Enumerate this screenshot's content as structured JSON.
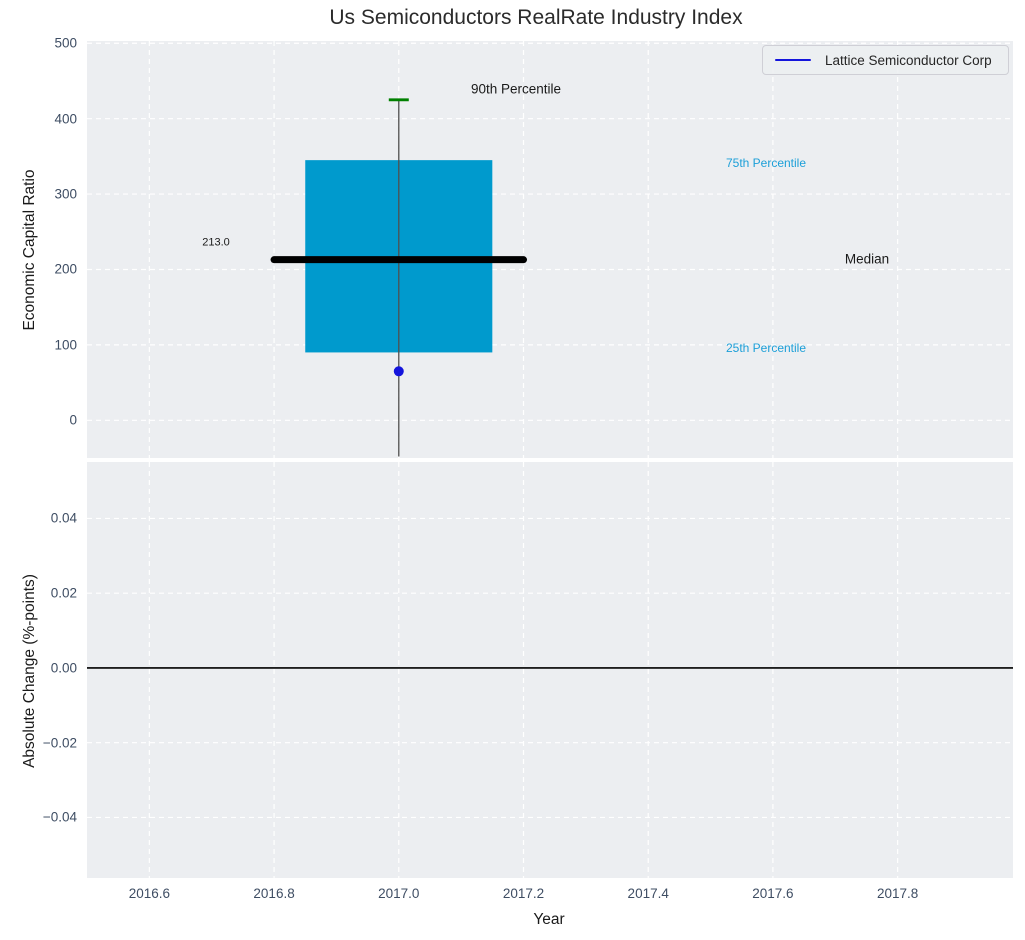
{
  "chart_data": {
    "type": "box",
    "title": "Us Semiconductors RealRate Industry Index",
    "xlabel": "Year",
    "xlim": [
      2016.5,
      2017.985
    ],
    "xticks": [
      {
        "v": 2016.6,
        "label": "2016.6"
      },
      {
        "v": 2016.8,
        "label": "2016.8"
      },
      {
        "v": 2017.0,
        "label": "2017.0"
      },
      {
        "v": 2017.2,
        "label": "2017.2"
      },
      {
        "v": 2017.4,
        "label": "2017.4"
      },
      {
        "v": 2017.6,
        "label": "2017.6"
      },
      {
        "v": 2017.8,
        "label": "2017.8"
      }
    ],
    "legend": {
      "label": "Lattice Semiconductor Corp",
      "position": "top-right"
    },
    "panels": [
      {
        "name": "economic-capital-ratio",
        "ylabel": "Economic Capital Ratio",
        "ylim": [
          -50,
          503
        ],
        "grid": true,
        "yticks": [
          {
            "v": 500,
            "label": "500"
          },
          {
            "v": 400,
            "label": "400"
          },
          {
            "v": 300,
            "label": "300"
          },
          {
            "v": 200,
            "label": "200"
          },
          {
            "v": 100,
            "label": "100"
          },
          {
            "v": 0,
            "label": "0"
          }
        ],
        "box": {
          "x": 2017.0,
          "box_left": 2016.85,
          "box_right": 2017.15,
          "q1": 90,
          "median": 213,
          "q3": 345,
          "median_line_left": 2016.8,
          "median_line_right": 2017.2,
          "whisker_top": 425,
          "whisker_bottom": -48
        },
        "point": {
          "x": 2017.0,
          "y": 65,
          "series": "Lattice Semiconductor Corp"
        },
        "annotations": {
          "p90": "90th Percentile",
          "p75": "75th Percentile",
          "median": "Median",
          "p25": "25th Percentile",
          "median_value": "213.0"
        }
      },
      {
        "name": "absolute-change",
        "ylabel": "Absolute Change (%-points)",
        "ylim": [
          -0.0562,
          0.0551
        ],
        "grid": true,
        "zero_line": 0.0,
        "yticks": [
          {
            "v": 0.04,
            "label": "0.04"
          },
          {
            "v": 0.02,
            "label": "0.02"
          },
          {
            "v": 0.0,
            "label": "0.00"
          },
          {
            "v": -0.02,
            "label": "−0.02"
          },
          {
            "v": -0.04,
            "label": "−0.04"
          }
        ]
      }
    ],
    "colors": {
      "panel_bg": "#eceef1",
      "grid": "#ffffff",
      "box_fill": "#009acd",
      "median_line": "#000000",
      "whisker": "#4f4f4f",
      "whisker_cap": "#008000",
      "point": "#1414dc",
      "zero_line": "#000000",
      "tick_text": "#3e4d63",
      "percentile_text": "#1c9fd8",
      "title_text": "#2b2b2b"
    }
  }
}
